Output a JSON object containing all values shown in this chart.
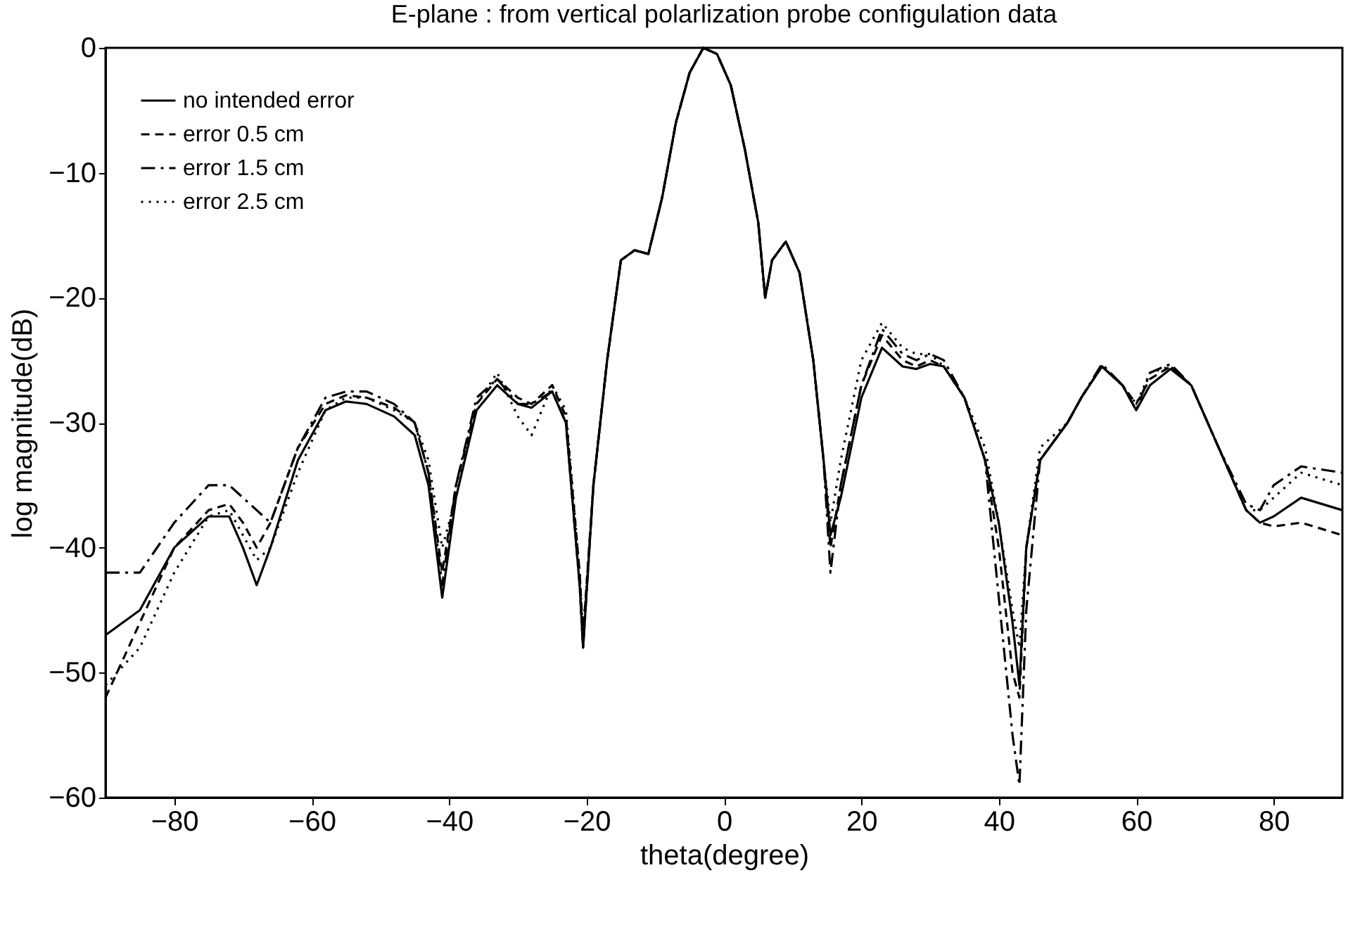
{
  "chart_data": {
    "type": "line",
    "title": "E-plane : from vertical polarlization probe configulation data",
    "xlabel": "theta(degree)",
    "ylabel": "log magnitude(dB)",
    "x": [
      -90,
      -85,
      -80,
      -75,
      -72,
      -70,
      -68,
      -66,
      -62,
      -58,
      -55,
      -52,
      -48,
      -45,
      -43,
      -41,
      -39,
      -36,
      -33,
      -30,
      -28,
      -25,
      -23,
      -21,
      -20.5,
      -19,
      -17,
      -15,
      -13,
      -11,
      -9,
      -7,
      -5,
      -3,
      -1,
      1,
      3,
      5,
      6,
      7,
      9,
      11,
      13,
      14.5,
      15.5,
      17,
      20,
      23,
      26,
      28,
      30,
      32,
      35,
      38,
      40,
      42,
      43,
      44,
      46,
      50,
      52,
      55,
      58,
      60,
      62,
      65,
      68,
      72,
      76,
      78,
      80,
      84,
      90
    ],
    "series": [
      {
        "name": "no intended error",
        "color": "#000000",
        "line_style": "solid",
        "values": [
          -47,
          -45,
          -40,
          -37.5,
          -37.5,
          -40,
          -43,
          -40,
          -33,
          -29,
          -28.3,
          -28.5,
          -29.5,
          -31,
          -35,
          -44,
          -36,
          -29,
          -27,
          -28.5,
          -28.8,
          -27.5,
          -30,
          -43,
          -48,
          -35,
          -25,
          -17,
          -16.2,
          -16.5,
          -12,
          -6,
          -2,
          0,
          -0.5,
          -3,
          -8,
          -14,
          -20,
          -17,
          -15.5,
          -18,
          -25,
          -33,
          -39,
          -36,
          -28,
          -24,
          -25.5,
          -25.7,
          -25.3,
          -25.5,
          -28,
          -33,
          -38,
          -46,
          -51,
          -40,
          -33,
          -30,
          -28,
          -25.5,
          -27,
          -29,
          -27,
          -25.7,
          -27,
          -32,
          -37,
          -38,
          -37.5,
          -36,
          -37
        ]
      },
      {
        "name": "error 0.5 cm",
        "color": "#000000",
        "line_style": "dashed",
        "values": [
          -52,
          -46,
          -40,
          -37,
          -36.5,
          -38,
          -40,
          -38,
          -32,
          -28.5,
          -27.8,
          -28,
          -28.8,
          -30,
          -34,
          -42,
          -35,
          -28.5,
          -26.5,
          -28,
          -28.5,
          -27,
          -29.5,
          -42,
          -47,
          -35,
          -25,
          -17,
          -16.2,
          -16.5,
          -12,
          -6,
          -2,
          0,
          -0.5,
          -3,
          -8,
          -14,
          -20,
          -17,
          -15.5,
          -18,
          -25,
          -33,
          -40,
          -35,
          -27,
          -23,
          -25,
          -25.5,
          -25,
          -25.5,
          -28,
          -33,
          -40,
          -50,
          -52,
          -40,
          -33,
          -30,
          -28,
          -25.5,
          -27,
          -28.5,
          -26.5,
          -25.5,
          -27,
          -32,
          -37,
          -38,
          -38.3,
          -38,
          -39
        ]
      },
      {
        "name": "error 1.5 cm",
        "color": "#000000",
        "line_style": "dashdot",
        "values": [
          -42,
          -42,
          -38,
          -35,
          -35,
          -36,
          -37,
          -38,
          -32,
          -28,
          -27.5,
          -27.5,
          -28.5,
          -30,
          -34,
          -43,
          -35,
          -28,
          -26.5,
          -28.5,
          -28.5,
          -27.5,
          -30,
          -43,
          -48,
          -35,
          -25,
          -17,
          -16.2,
          -16.5,
          -12,
          -6,
          -2,
          0,
          -0.5,
          -3,
          -8,
          -14,
          -20,
          -17,
          -15.5,
          -18,
          -25,
          -33,
          -42,
          -35,
          -27,
          -22.5,
          -24.5,
          -25,
          -24.5,
          -25,
          -28,
          -33,
          -44,
          -55,
          -59,
          -45,
          -33,
          -30,
          -28,
          -25.3,
          -27,
          -29,
          -26,
          -25.3,
          -27,
          -32,
          -36.5,
          -37,
          -35,
          -33.5,
          -34
        ]
      },
      {
        "name": "error 2.5 cm",
        "color": "#000000",
        "line_style": "dotted",
        "values": [
          -51,
          -48,
          -42,
          -37.5,
          -37,
          -39,
          -41,
          -40,
          -34,
          -29,
          -28,
          -28,
          -29,
          -30,
          -33,
          -40,
          -36,
          -28.5,
          -26,
          -29.5,
          -31,
          -27,
          -29,
          -42,
          -47,
          -35,
          -25,
          -17,
          -16.2,
          -16.5,
          -12,
          -6,
          -2,
          0,
          -0.5,
          -3,
          -8,
          -14,
          -20,
          -17,
          -15.5,
          -18,
          -25,
          -33,
          -38,
          -33,
          -25,
          -22,
          -24,
          -24.5,
          -24.5,
          -25.5,
          -28,
          -32,
          -38,
          -45,
          -48,
          -40,
          -32,
          -30,
          -28,
          -25.5,
          -27,
          -28.5,
          -26,
          -25.5,
          -27,
          -32,
          -37,
          -37,
          -36,
          -34,
          -35
        ]
      }
    ],
    "xlim": [
      -90,
      90
    ],
    "xticks": [
      -80,
      -60,
      -40,
      -20,
      0,
      20,
      40,
      60,
      80
    ],
    "ylim": [
      -60,
      0
    ],
    "yticks": [
      -60,
      -50,
      -40,
      -30,
      -20,
      -10,
      0
    ],
    "legend": "top left",
    "grid": false,
    "marker": "none"
  }
}
